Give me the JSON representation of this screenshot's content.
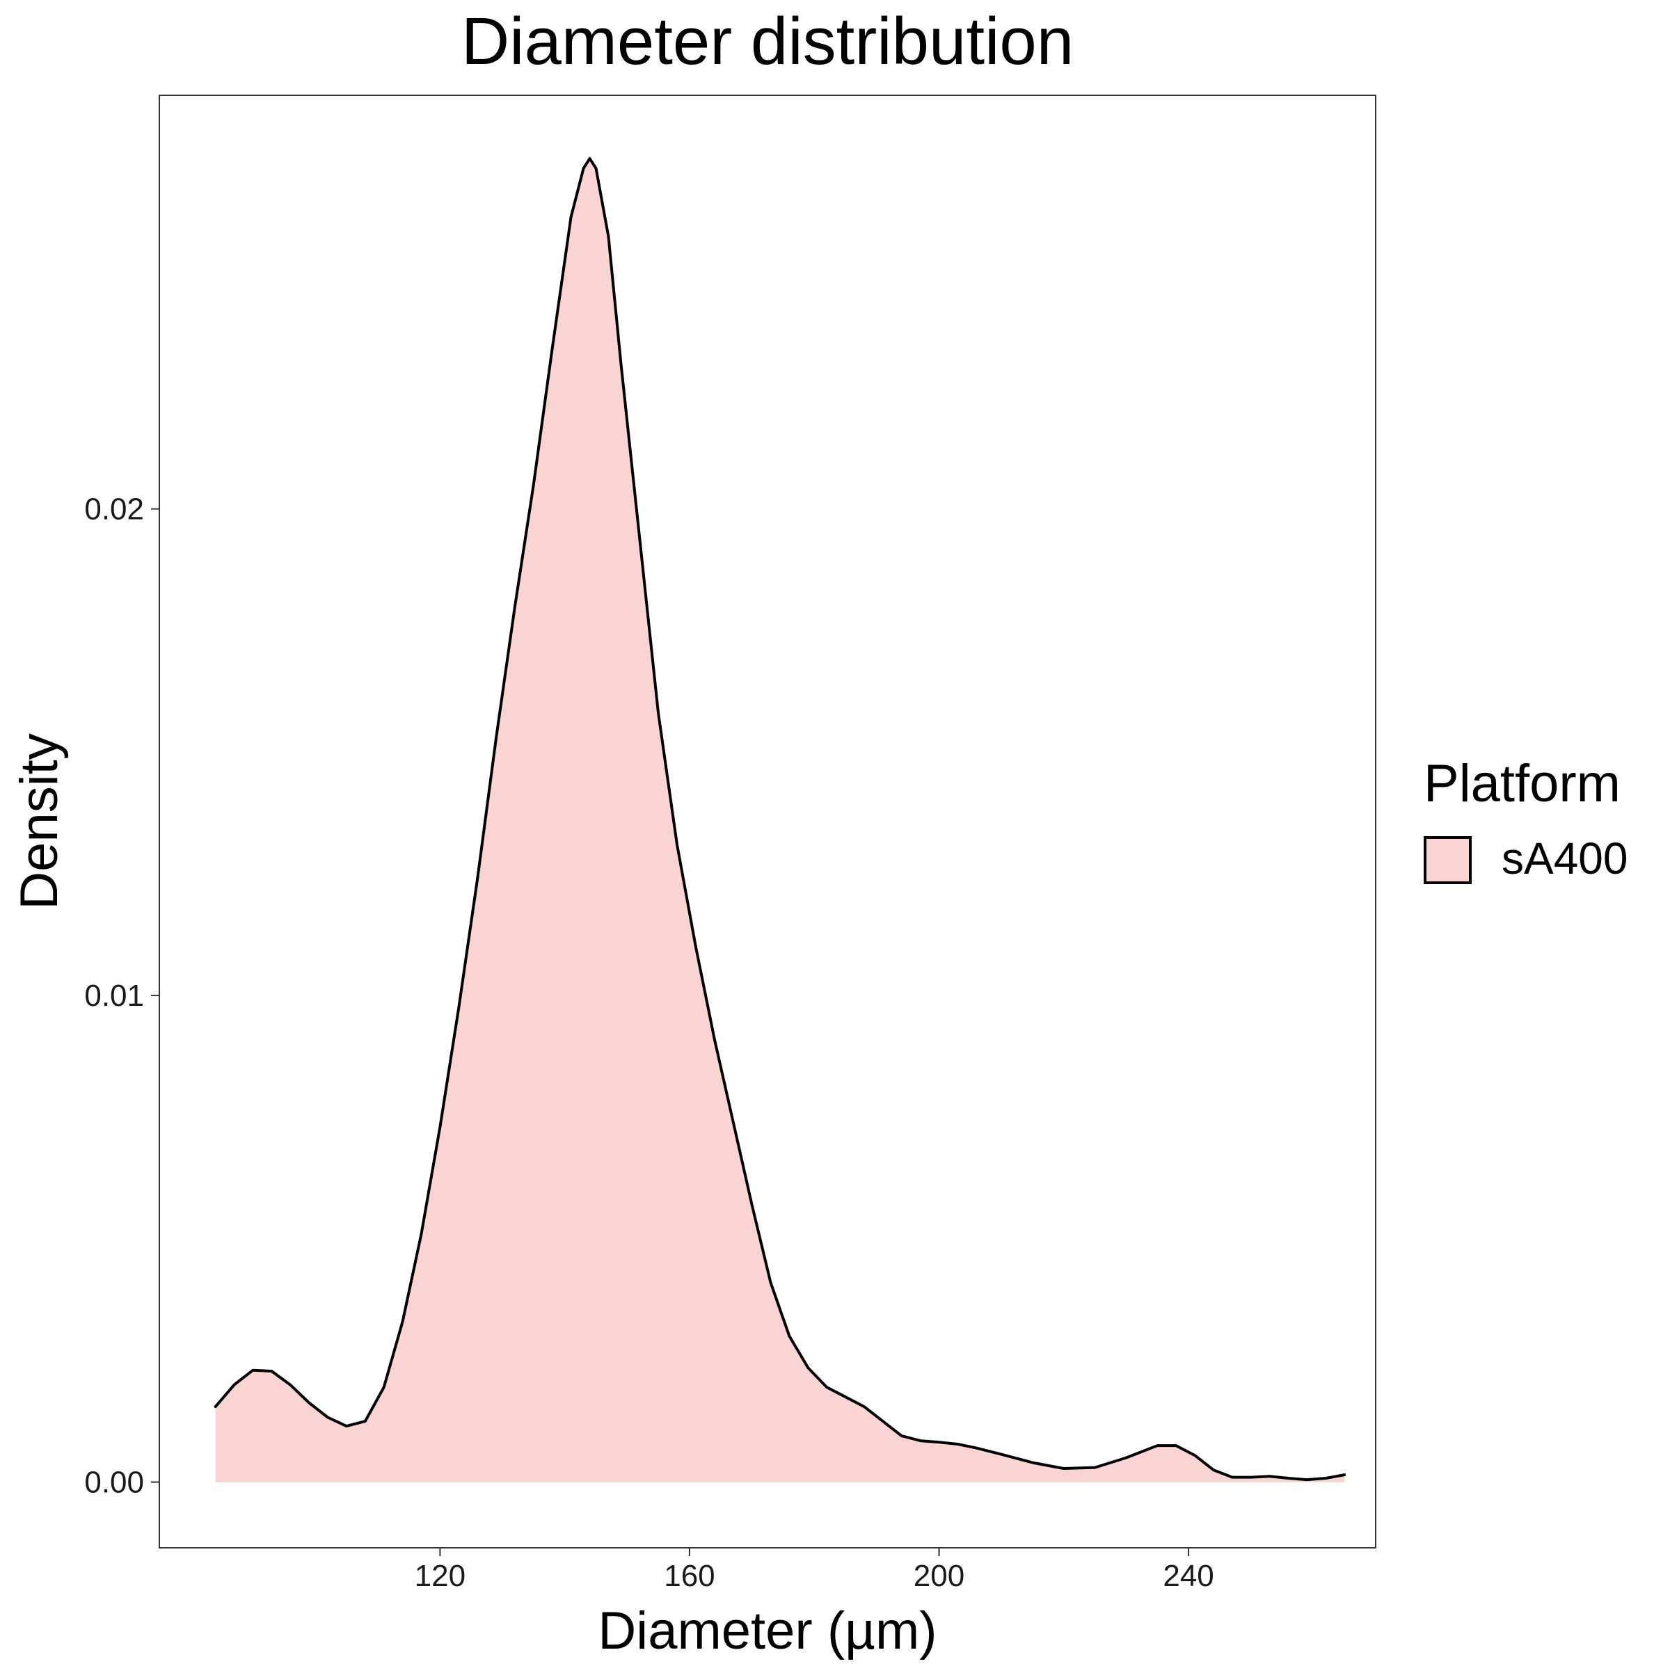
{
  "chart_data": {
    "type": "area",
    "title": "Diameter distribution",
    "xlabel": "Diameter (µm)",
    "ylabel": "Density",
    "xlim": [
      75,
      270
    ],
    "ylim": [
      -0.00135,
      0.0285
    ],
    "grid": false,
    "legend_position": "right",
    "legend": {
      "title": "Platform",
      "entries": [
        {
          "label": "sA400",
          "color": "#FAD4D2"
        }
      ]
    },
    "x_ticks": [
      {
        "value": 120,
        "label": "120"
      },
      {
        "value": 160,
        "label": "160"
      },
      {
        "value": 200,
        "label": "200"
      },
      {
        "value": 240,
        "label": "240"
      }
    ],
    "y_ticks": [
      {
        "value": 0.0,
        "label": "0.00"
      },
      {
        "value": 0.01,
        "label": "0.01"
      },
      {
        "value": 0.02,
        "label": "0.02"
      }
    ],
    "colors": {
      "fill": "#FAD4D2",
      "line": "#000000",
      "panel_border": "#333333",
      "background": "#FFFFFF"
    },
    "series": [
      {
        "name": "sA400",
        "x": [
          84,
          87,
          90,
          93,
          96,
          99,
          102,
          105,
          108,
          111,
          114,
          117,
          120,
          123,
          126,
          129,
          132,
          135,
          138,
          141,
          143,
          144,
          145,
          147,
          149,
          152,
          155,
          158,
          161,
          164,
          167,
          170,
          173,
          176,
          179,
          182,
          185,
          188,
          191,
          194,
          197,
          200,
          203,
          206,
          210,
          215,
          220,
          225,
          230,
          235,
          238,
          241,
          244,
          247,
          250,
          253,
          256,
          259,
          262,
          265
        ],
        "y": [
          0.00155,
          0.002,
          0.0023,
          0.00228,
          0.002,
          0.00163,
          0.00133,
          0.00115,
          0.00125,
          0.00195,
          0.0033,
          0.0051,
          0.0073,
          0.00975,
          0.0124,
          0.0153,
          0.018,
          0.0205,
          0.0233,
          0.026,
          0.027,
          0.0272,
          0.027,
          0.0256,
          0.023,
          0.0194,
          0.0158,
          0.0131,
          0.011,
          0.0091,
          0.0074,
          0.0057,
          0.0041,
          0.003,
          0.00235,
          0.00195,
          0.00175,
          0.00155,
          0.00125,
          0.00095,
          0.00085,
          0.00082,
          0.00078,
          0.0007,
          0.00057,
          0.0004,
          0.00028,
          0.0003,
          0.0005,
          0.00075,
          0.00075,
          0.00055,
          0.00025,
          0.0001,
          0.0001,
          0.00012,
          8e-05,
          5e-05,
          8e-05,
          0.00015
        ]
      }
    ]
  }
}
